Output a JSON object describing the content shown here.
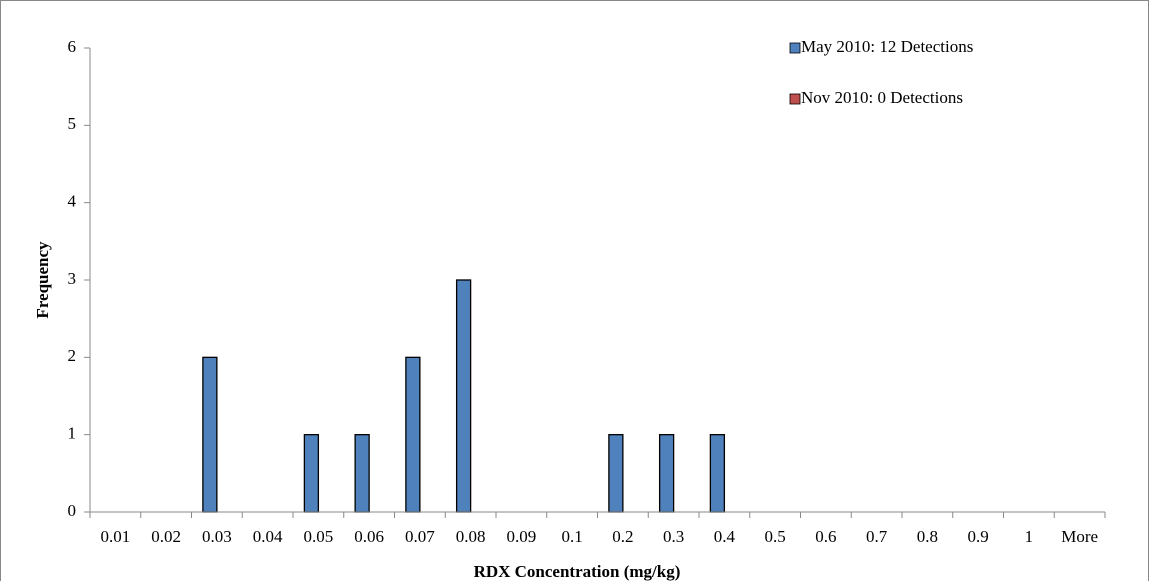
{
  "chart_data": {
    "type": "bar",
    "x_label": "RDX Concentration (mg/kg)",
    "y_label": "Frequency",
    "categories": [
      "0.01",
      "0.02",
      "0.03",
      "0.04",
      "0.05",
      "0.06",
      "0.07",
      "0.08",
      "0.09",
      "0.1",
      "0.2",
      "0.3",
      "0.4",
      "0.5",
      "0.6",
      "0.7",
      "0.8",
      "0.9",
      "1",
      "More"
    ],
    "series": [
      {
        "name": "May 2010: 12 Detections",
        "color": "#4f81bd",
        "values": [
          0,
          0,
          2,
          0,
          1,
          1,
          2,
          3,
          0,
          0,
          1,
          1,
          1,
          0,
          0,
          0,
          0,
          0,
          0,
          0
        ]
      },
      {
        "name": "Nov 2010: 0 Detections",
        "color": "#c0504d",
        "values": [
          0,
          0,
          0,
          0,
          0,
          0,
          0,
          0,
          0,
          0,
          0,
          0,
          0,
          0,
          0,
          0,
          0,
          0,
          0,
          0
        ]
      }
    ],
    "ylim": [
      0,
      6
    ],
    "yticks": [
      0,
      1,
      2,
      3,
      4,
      5,
      6
    ],
    "grid": false,
    "legend": "top-right"
  }
}
